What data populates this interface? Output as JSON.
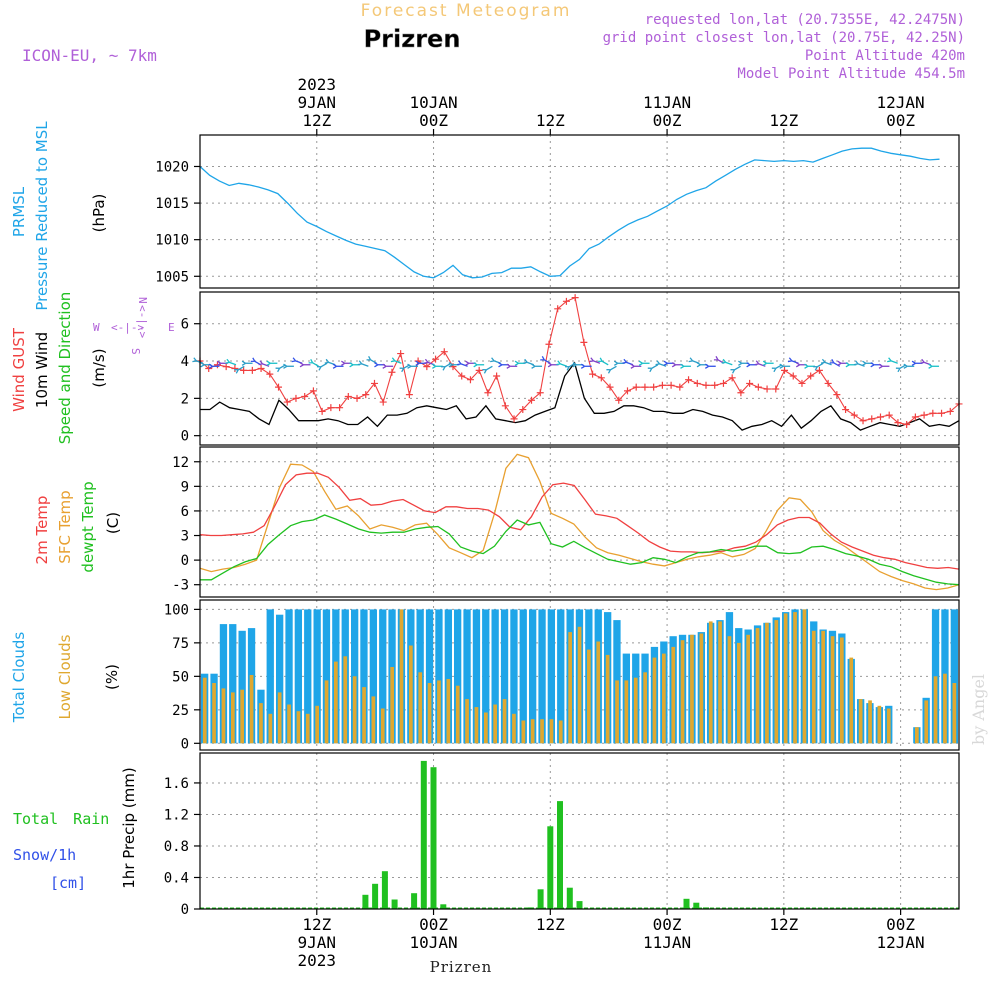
{
  "header": {
    "top_label": "Forecast Meteogram",
    "title": "Prizren",
    "model": "ICON-EU, ~ 7km",
    "requested": "requested lon,lat (20.7355E, 42.2475N)",
    "grid_point": "grid point closest lon,lat (20.75E, 42.25N)",
    "point_alt": "Point Altitude 420m",
    "model_alt": "Model Point Altitude 454.5m"
  },
  "time_axis": {
    "range": [
      0,
      78
    ],
    "unit": "hours from 2023-01-09 00Z (approx)",
    "top_labels": [
      {
        "t": 12,
        "lines": [
          "2023",
          "9JAN",
          "12Z"
        ]
      },
      {
        "t": 24,
        "lines": [
          "10JAN",
          "00Z"
        ]
      },
      {
        "t": 36,
        "lines": [
          "12Z"
        ]
      },
      {
        "t": 48,
        "lines": [
          "11JAN",
          "00Z"
        ]
      },
      {
        "t": 60,
        "lines": [
          "12Z"
        ]
      },
      {
        "t": 72,
        "lines": [
          "12JAN",
          "00Z"
        ]
      }
    ],
    "bottom_labels": [
      {
        "t": 12,
        "lines": [
          "12Z",
          "9JAN",
          "2023"
        ]
      },
      {
        "t": 24,
        "lines": [
          "00Z",
          "10JAN"
        ]
      },
      {
        "t": 36,
        "lines": [
          "12Z"
        ]
      },
      {
        "t": 48,
        "lines": [
          "00Z",
          "11JAN"
        ]
      },
      {
        "t": 60,
        "lines": [
          "12Z"
        ]
      },
      {
        "t": 72,
        "lines": [
          "00Z",
          "12JAN"
        ]
      }
    ],
    "bottom_title": "Prizren"
  },
  "watermark": "by Angel",
  "chart_data": [
    {
      "type": "line",
      "name": "pressure",
      "ylabel_lines": [
        "PRMSL",
        "Pressure Reduced to MSL"
      ],
      "unit": "(hPa)",
      "yticks": [
        1005,
        1010,
        1015,
        1020
      ],
      "ylim": [
        1003.4,
        1024.3
      ],
      "color": "#1fa5e8",
      "x": [
        0,
        1,
        2,
        3,
        4,
        5,
        6,
        7,
        8,
        9,
        10,
        11,
        12,
        13,
        14,
        15,
        16,
        17,
        18,
        19,
        20,
        21,
        22,
        23,
        24,
        25,
        26,
        27,
        28,
        29,
        30,
        31,
        32,
        33,
        34,
        35,
        36,
        37,
        38,
        39,
        40,
        41,
        42,
        43,
        44,
        45,
        46,
        47,
        48,
        49,
        50,
        51,
        52,
        53,
        54,
        55,
        56,
        57,
        58,
        59,
        60,
        61,
        62,
        63,
        64,
        65,
        66,
        67,
        68,
        69,
        70,
        71,
        72,
        73,
        74,
        75,
        76
      ],
      "y": [
        1020,
        1018.8,
        1018,
        1017.4,
        1017.7,
        1017.5,
        1017.2,
        1016.8,
        1016.3,
        1015,
        1013.6,
        1012.4,
        1011.8,
        1011.1,
        1010.5,
        1009.9,
        1009.4,
        1009.1,
        1008.8,
        1008.5,
        1007.6,
        1006.6,
        1005.6,
        1005,
        1004.8,
        1005.5,
        1006.5,
        1005.2,
        1004.8,
        1004.9,
        1005.4,
        1005.5,
        1006.1,
        1006.1,
        1006.3,
        1005.6,
        1005,
        1005.1,
        1006.4,
        1007.3,
        1008.8,
        1009.4,
        1010.4,
        1011.3,
        1012.1,
        1012.7,
        1013.2,
        1013.9,
        1014.6,
        1015.5,
        1016.2,
        1016.7,
        1017.1,
        1018,
        1018.8,
        1019.6,
        1020.3,
        1020.9,
        1020.8,
        1020.7,
        1020.8,
        1020.7,
        1020.8,
        1020.6,
        1021.1,
        1021.6,
        1022.1,
        1022.4,
        1022.5,
        1022.5,
        1022.1,
        1021.8,
        1021.6,
        1021.4,
        1021.1,
        1020.9,
        1021
      ]
    },
    {
      "type": "line",
      "name": "wind",
      "ylabel_lines": [
        "Wind GUST",
        "10m Wind",
        "Speed and Direction"
      ],
      "unit": "(m/s)",
      "compass": {
        "n": "N",
        "s": "S",
        "w": "W",
        "e": "E"
      },
      "yticks": [
        0,
        2,
        4,
        6
      ],
      "ylim": [
        -0.5,
        7.7
      ],
      "series": [
        {
          "name": "Wind GUST",
          "color": "#f04040",
          "values": [
            4,
            3.6,
            3.8,
            3.7,
            3.6,
            3.5,
            3.5,
            3.6,
            3.3,
            2.6,
            1.8,
            2,
            2.1,
            2.4,
            1.3,
            1.5,
            1.5,
            2.1,
            2,
            2.2,
            2.8,
            1.8,
            3.4,
            4.4,
            2.2,
            4,
            3.7,
            4.1,
            4.5,
            3.7,
            3.2,
            3,
            3.5,
            2.3,
            3.2,
            1.6,
            0.9,
            1.4,
            1.9,
            2.3,
            4.9,
            6.8,
            7.2,
            7.4,
            5,
            3.3,
            3.1,
            2.6,
            1.9,
            2.4,
            2.6,
            2.6,
            2.6,
            2.7,
            2.7,
            2.6,
            3,
            2.8,
            2.7,
            2.7,
            2.8,
            3.1,
            2.3,
            2.8,
            2.6,
            2.5,
            2.5,
            3.5,
            3.2,
            2.8,
            3.2,
            3.5,
            2.8,
            2.2,
            1.4,
            1.1,
            0.8,
            0.9,
            1,
            1.1,
            0.7,
            0.6,
            1,
            1.1,
            1.2,
            1.2,
            1.3,
            1.7
          ]
        },
        {
          "name": "10m Wind",
          "color": "#000000",
          "values": [
            1.4,
            1.4,
            1.8,
            1.5,
            1.4,
            1.3,
            0.9,
            0.6,
            1.9,
            1.4,
            0.8,
            0.8,
            0.8,
            0.9,
            0.8,
            0.6,
            0.6,
            1,
            0.5,
            1.1,
            1.1,
            1.2,
            1.5,
            1.6,
            1.5,
            1.4,
            1.6,
            0.9,
            1,
            1.6,
            0.9,
            0.8,
            0.7,
            0.8,
            1.1,
            1.3,
            1.5,
            3.2,
            3.9,
            2,
            1.2,
            1.2,
            1.3,
            1.6,
            1.6,
            1.5,
            1.3,
            1.3,
            1.2,
            1.2,
            1.4,
            1.3,
            1.1,
            1,
            0.8,
            0.3,
            0.5,
            0.6,
            0.8,
            0.5,
            1.1,
            0.4,
            0.8,
            1.3,
            1.6,
            0.9,
            0.7,
            0.3,
            0.5,
            0.7,
            0.6,
            0.5,
            0.7,
            0.9,
            0.5,
            0.6,
            0.5,
            0.8
          ]
        },
        {
          "name": "Wind direction",
          "color": "#2a9ec8"
        }
      ]
    },
    {
      "type": "line",
      "name": "temperature",
      "ylabel_lines": [
        "2m Temp",
        "SFC Temp",
        "dewpt Temp"
      ],
      "unit": "(C)",
      "yticks": [
        -3,
        0,
        3,
        6,
        9,
        12
      ],
      "ylim": [
        -4.5,
        13.8
      ],
      "series": [
        {
          "name": "2m Temp",
          "color": "#f04040",
          "values": [
            3.1,
            3,
            3,
            3.1,
            3.2,
            3.4,
            4.2,
            6.6,
            9.2,
            10.4,
            10.6,
            10.6,
            10.1,
            8.9,
            7.3,
            7.5,
            6.7,
            6.8,
            7.2,
            7.4,
            6.7,
            6,
            5.8,
            6.5,
            6.5,
            6.3,
            6.3,
            6.1,
            5.3,
            4,
            3.7,
            5.3,
            7.7,
            9.2,
            9.4,
            9.1,
            7.4,
            5.6,
            5.4,
            5.1,
            4.2,
            3.3,
            2.3,
            1.6,
            1.1,
            1,
            1,
            0.9,
            1,
            1.1,
            1.5,
            1.7,
            2.2,
            3.1,
            4.3,
            4.9,
            5.2,
            5.2,
            4.5,
            3.2,
            2.2,
            1.6,
            1.1,
            0.6,
            0.3,
            0.1,
            -0.3,
            -0.6,
            -0.9,
            -1,
            -0.9,
            -1.1
          ]
        },
        {
          "name": "SFC Temp",
          "color": "#e8a030",
          "values": [
            -1,
            -1.4,
            -1.1,
            -0.9,
            -0.5,
            0,
            4.4,
            8.8,
            11.7,
            11.6,
            10.8,
            8.4,
            6.2,
            6.6,
            5.4,
            3.8,
            4.3,
            4,
            3.6,
            4.3,
            4.5,
            3.1,
            1.5,
            0.9,
            0.3,
            1.2,
            5.7,
            11.2,
            12.9,
            12.5,
            9.6,
            5.7,
            5.1,
            4.4,
            2.8,
            1.5,
            0.9,
            0.6,
            0.2,
            -0.2,
            -0.5,
            -0.7,
            -0.3,
            0.1,
            0.4,
            0.6,
            0.9,
            0.4,
            0.7,
            1.4,
            3.6,
            6.1,
            7.6,
            7.4,
            5.9,
            3.6,
            2.4,
            1.6,
            0.6,
            -0.4,
            -1.4,
            -2,
            -2.5,
            -2.9,
            -3.4,
            -3.6,
            -3.4,
            -3
          ]
        },
        {
          "name": "dewpt Temp",
          "color": "#20c020",
          "values": [
            -2.4,
            -2.4,
            -1.6,
            -0.8,
            -0.2,
            0.2,
            1.9,
            3.1,
            4.2,
            4.7,
            4.9,
            5.5,
            5,
            4.4,
            3.8,
            3.4,
            3.3,
            3.4,
            3.4,
            3.8,
            4,
            4.1,
            3.2,
            1.6,
            1.1,
            0.8,
            1.7,
            3.5,
            4.9,
            4.3,
            4.6,
            2,
            1.6,
            2.3,
            1.5,
            0.8,
            0.1,
            -0.2,
            -0.5,
            -0.3,
            0.3,
            0.1,
            -0.3,
            0.4,
            0.9,
            1,
            1.3,
            1.1,
            1.3,
            1.7,
            1.7,
            0.9,
            0.8,
            0.9,
            1.6,
            1.7,
            1.3,
            0.8,
            0.5,
            0.1,
            -0.5,
            -0.8,
            -1.4,
            -1.9,
            -2.3,
            -2.7,
            -2.9,
            -3
          ]
        }
      ]
    },
    {
      "type": "bar",
      "name": "clouds",
      "ylabel_lines": [
        "Total Clouds",
        "Low Clouds"
      ],
      "unit": "(%)",
      "yticks": [
        0,
        25,
        50,
        75,
        100
      ],
      "ylim": [
        -5,
        107
      ],
      "series": [
        {
          "name": "Total Clouds",
          "color": "#1fa5e8",
          "values": [
            52,
            52,
            89,
            89,
            84,
            86,
            40,
            100,
            96,
            100,
            100,
            100,
            100,
            100,
            100,
            100,
            100,
            100,
            100,
            100,
            100,
            100,
            100,
            100,
            100,
            100,
            100,
            100,
            100,
            100,
            100,
            100,
            100,
            100,
            100,
            100,
            100,
            100,
            100,
            100,
            100,
            100,
            100,
            98,
            92,
            67,
            67,
            67,
            72,
            76,
            80,
            81,
            81,
            83,
            90,
            92,
            98,
            86,
            85,
            88,
            90,
            94,
            98,
            100,
            100,
            91,
            85,
            84,
            82,
            63,
            33,
            30,
            27,
            28,
            0,
            0,
            12,
            34,
            100,
            100,
            100
          ]
        },
        {
          "name": "Low Clouds",
          "color": "#dfa830",
          "values": [
            49,
            45,
            41,
            38,
            40,
            51,
            30,
            22,
            38,
            29,
            24,
            22,
            28,
            47,
            61,
            65,
            50,
            42,
            35,
            26,
            57,
            100,
            73,
            53,
            45,
            47,
            48,
            43,
            33,
            27,
            23,
            29,
            33,
            22,
            17,
            18,
            18,
            18,
            17,
            83,
            87,
            70,
            76,
            66,
            47,
            47,
            49,
            53,
            64,
            67,
            72,
            77,
            81,
            82,
            91,
            91,
            80,
            75,
            81,
            86,
            90,
            92,
            97,
            98,
            100,
            84,
            84,
            80,
            79,
            64,
            33,
            32,
            28,
            26,
            0,
            0,
            12,
            32,
            50,
            52,
            45
          ]
        }
      ]
    },
    {
      "type": "bar",
      "name": "precipitation",
      "ylabel_lines": [
        "Total Rain",
        "Snow/1h",
        "[cm]"
      ],
      "ylabel": "1hr Precip (mm)",
      "yticks": [
        0,
        0.4,
        0.8,
        1.2,
        1.6
      ],
      "yticks_labels": [
        "0",
        "0.4",
        "0.8",
        "1.2",
        "1.6"
      ],
      "ylim": [
        0,
        1.98
      ],
      "series": [
        {
          "name": "Total Rain",
          "color": "#20c020",
          "x": [
            17,
            18,
            19,
            20,
            22,
            23,
            24,
            25,
            34,
            35,
            36,
            37,
            38,
            39,
            50,
            51,
            52
          ],
          "values": [
            0.18,
            0.32,
            0.48,
            0.12,
            0.2,
            1.88,
            1.8,
            0.06,
            0.02,
            0.25,
            1.05,
            1.37,
            0.27,
            0.1,
            0.13,
            0.08,
            0.02
          ]
        }
      ]
    }
  ]
}
